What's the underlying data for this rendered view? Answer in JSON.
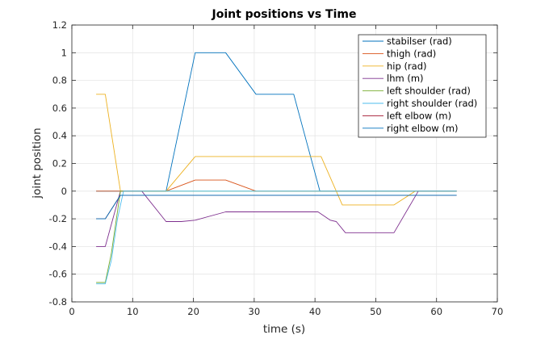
{
  "chart_data": {
    "type": "line",
    "title": "Joint positions vs Time",
    "xlabel": "time (s)",
    "ylabel": "joint position",
    "xlim": [
      0,
      70
    ],
    "ylim": [
      -0.8,
      1.2
    ],
    "xticks": [
      0,
      10,
      20,
      30,
      40,
      50,
      60,
      70
    ],
    "yticks": [
      -0.8,
      -0.6,
      -0.4,
      -0.2,
      0,
      0.2,
      0.4,
      0.6,
      0.8,
      1,
      1.2
    ],
    "xtick_labels": [
      "0",
      "10",
      "20",
      "30",
      "40",
      "50",
      "60",
      "70"
    ],
    "ytick_labels": [
      "-0.8",
      "-0.6",
      "-0.4",
      "-0.2",
      "0",
      "0.2",
      "0.4",
      "0.6",
      "0.8",
      "1",
      "1.2"
    ],
    "grid": true,
    "legend_position": "top-right",
    "series": [
      {
        "name": "stabilser (rad)",
        "color": "#0072BD",
        "x": [
          4,
          8,
          15.5,
          20.3,
          25.3,
          30.3,
          36.5,
          40.8,
          63.3
        ],
        "y": [
          0,
          0,
          0,
          1,
          1,
          0.7,
          0.7,
          0,
          0
        ]
      },
      {
        "name": "thigh (rad)",
        "color": "#D95319",
        "x": [
          4,
          8,
          15.5,
          20.3,
          25.3,
          30.3,
          63.3
        ],
        "y": [
          0,
          0,
          0,
          0.08,
          0.08,
          0,
          0
        ]
      },
      {
        "name": "hip (rad)",
        "color": "#EDB120",
        "x": [
          4,
          5.5,
          8,
          15.5,
          20.3,
          40.5,
          41,
          44.5,
          53,
          56.5,
          63.3
        ],
        "y": [
          0.7,
          0.7,
          0,
          0,
          0.25,
          0.25,
          0.25,
          -0.1,
          -0.1,
          0,
          0
        ]
      },
      {
        "name": "lhm (m)",
        "color": "#7E2F8E",
        "x": [
          4,
          5.5,
          8,
          11.5,
          15.5,
          18,
          20.3,
          25.3,
          30.3,
          40.5,
          42.5,
          43.5,
          45,
          53,
          57,
          63.3
        ],
        "y": [
          -0.4,
          -0.4,
          0,
          0,
          -0.22,
          -0.22,
          -0.21,
          -0.15,
          -0.15,
          -0.15,
          -0.21,
          -0.22,
          -0.3,
          -0.3,
          0,
          0
        ]
      },
      {
        "name": "left shoulder (rad)",
        "color": "#77AC30",
        "x": [
          4,
          5.5,
          6.5,
          8,
          63.3
        ],
        "y": [
          -0.66,
          -0.66,
          -0.45,
          0,
          0
        ]
      },
      {
        "name": "right shoulder (rad)",
        "color": "#4DBEEE",
        "x": [
          4,
          5.5,
          6.5,
          7.5,
          8.5,
          63.3
        ],
        "y": [
          -0.67,
          -0.67,
          -0.5,
          -0.2,
          0,
          0
        ]
      },
      {
        "name": "left elbow (m)",
        "color": "#A2142F",
        "x": [
          4,
          5.5,
          8,
          63.3
        ],
        "y": [
          -0.2,
          -0.2,
          -0.03,
          -0.03
        ]
      },
      {
        "name": "right elbow (m)",
        "color": "#0072BD",
        "x": [
          4,
          5.5,
          8,
          63.3
        ],
        "y": [
          -0.2,
          -0.2,
          -0.03,
          -0.03
        ]
      }
    ]
  }
}
